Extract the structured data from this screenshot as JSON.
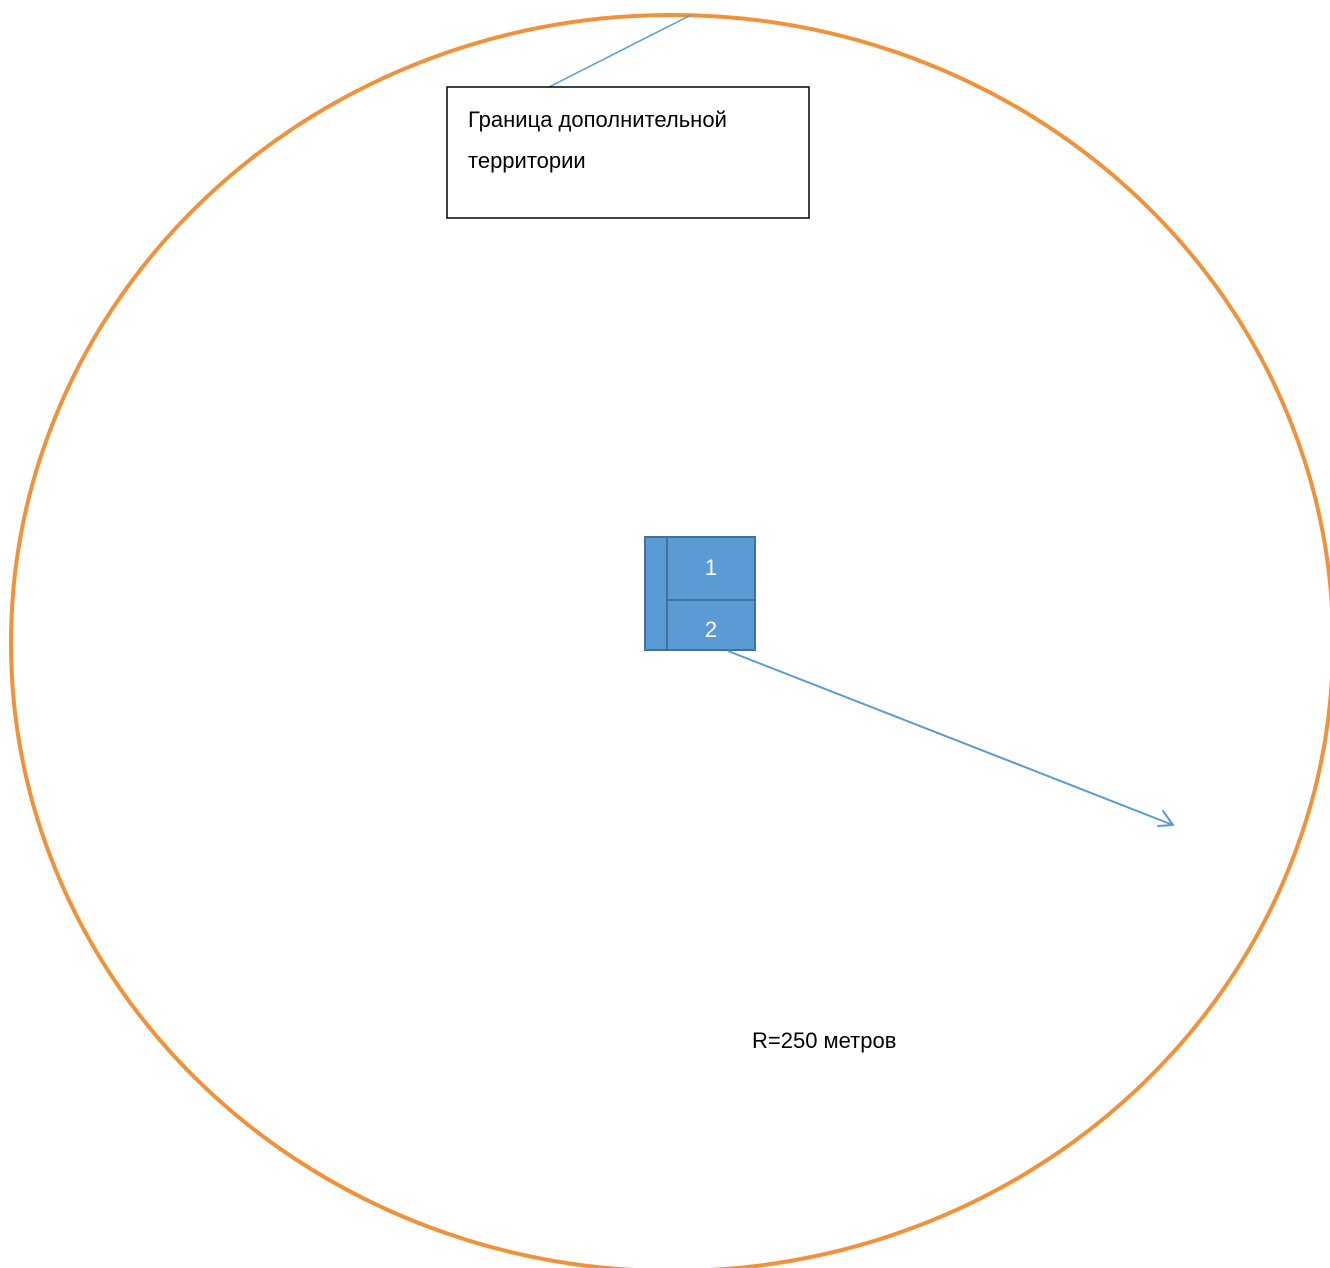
{
  "callout": {
    "line1": "Граница дополнительной",
    "line2": "территории"
  },
  "buildings": [
    {
      "label": "1"
    },
    {
      "label": "2"
    }
  ],
  "radius_label": "R=250 метров",
  "colors": {
    "boundary": "#f0923a",
    "building_fill": "#5b9bd5",
    "building_stroke": "#41719c",
    "leader_line": "#5b9bd5",
    "callout_border": "#000000"
  }
}
